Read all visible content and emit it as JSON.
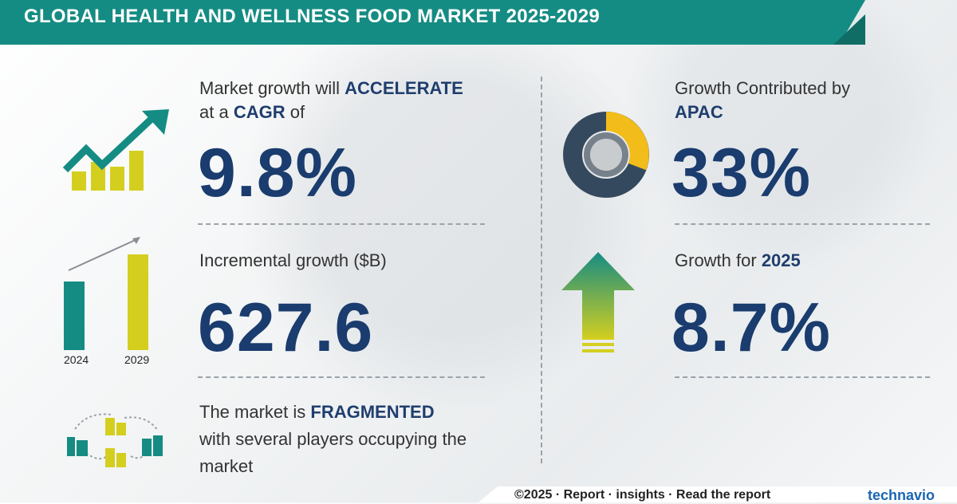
{
  "header": {
    "title": "GLOBAL HEALTH AND WELLNESS FOOD MARKET 2025-2029"
  },
  "cagr": {
    "line1_pre": "Market growth will ",
    "line1_bold": "ACCELERATE",
    "line2_pre": "at a ",
    "line2_bold": "CAGR",
    "line2_post": "  of",
    "value": "9.8%"
  },
  "incremental": {
    "label": "Incremental growth ($B)",
    "value": "627.6",
    "year_start": "2024",
    "year_end": "2029"
  },
  "market": {
    "line1_pre": "The market is  ",
    "line1_bold": "FRAGMENTED",
    "line2": "with several players occupying the",
    "line3": "market"
  },
  "region": {
    "line1": "Growth Contributed by",
    "line2_bold": "APAC",
    "value": "33%"
  },
  "growth_year": {
    "label_pre": "Growth for  ",
    "label_bold": "2025",
    "value": "8.7%"
  },
  "footer": {
    "text": "©2025 · Report  ·  insights  ·  Read the report",
    "logo": "technavio"
  },
  "colors": {
    "teal": "#158c83",
    "navy": "#1a3c6e",
    "yellow": "#d4cf1f",
    "donut_dark": "#34495e",
    "donut_gold": "#f2bd1a"
  },
  "icons": [
    "trend-up-bars-icon",
    "growth-bars-icon",
    "donut-chart-icon",
    "up-arrow-icon",
    "buildings-network-icon"
  ]
}
